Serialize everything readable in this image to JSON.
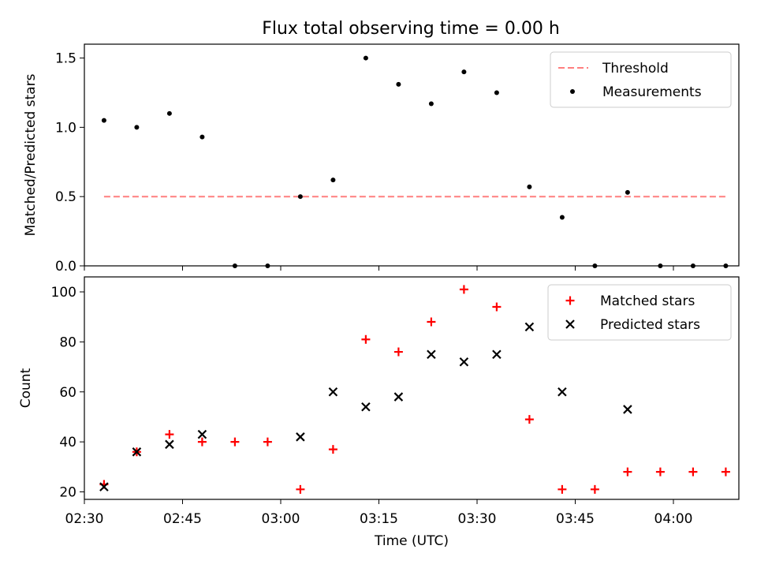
{
  "title": "Flux total observing time = 0.00 h",
  "chart_data": [
    {
      "type": "scatter",
      "title": "Flux total observing time = 0.00 h",
      "xlabel": "",
      "ylabel": "Matched/Predicted stars",
      "xlim": [
        "02:30",
        "04:10"
      ],
      "ylim": [
        0,
        1.6
      ],
      "yticks": [
        0.0,
        0.5,
        1.0,
        1.5
      ],
      "ytick_labels": [
        "0.0",
        "0.5",
        "1.0",
        "1.5"
      ],
      "grid": false,
      "legend_position": "top-right",
      "threshold": {
        "name": "Threshold",
        "value": 0.5,
        "x_start": "02:33",
        "x_end": "04:08",
        "color": "#ff7f7f",
        "style": "dashed"
      },
      "series": [
        {
          "name": "Measurements",
          "marker": "dot",
          "color": "#000000",
          "x": [
            "02:33",
            "02:38",
            "02:43",
            "02:48",
            "02:53",
            "02:58",
            "03:03",
            "03:08",
            "03:13",
            "03:18",
            "03:23",
            "03:28",
            "03:33",
            "03:38",
            "03:43",
            "03:48",
            "03:53",
            "03:58",
            "04:03",
            "04:08"
          ],
          "y": [
            1.05,
            1.0,
            1.1,
            0.93,
            0.0,
            0.0,
            0.5,
            0.62,
            1.5,
            1.31,
            1.17,
            1.4,
            1.25,
            0.57,
            0.35,
            0.0,
            0.53,
            0.0,
            0.0,
            0.0
          ]
        }
      ]
    },
    {
      "type": "scatter",
      "title": "",
      "xlabel": "Time (UTC)",
      "ylabel": "Count",
      "xlim": [
        "02:30",
        "04:10"
      ],
      "xticks": [
        "02:30",
        "02:45",
        "03:00",
        "03:15",
        "03:30",
        "03:45",
        "04:00"
      ],
      "ylim": [
        17,
        106
      ],
      "yticks": [
        20,
        40,
        60,
        80,
        100
      ],
      "ytick_labels": [
        "20",
        "40",
        "60",
        "80",
        "100"
      ],
      "grid": false,
      "legend_position": "top-right",
      "series": [
        {
          "name": "Matched stars",
          "marker": "plus",
          "color": "#ff0000",
          "x": [
            "02:33",
            "02:38",
            "02:43",
            "02:48",
            "02:53",
            "02:58",
            "03:03",
            "03:08",
            "03:13",
            "03:18",
            "03:23",
            "03:28",
            "03:33",
            "03:38",
            "03:43",
            "03:48",
            "03:53",
            "03:58",
            "04:03",
            "04:08"
          ],
          "y": [
            23,
            36,
            43,
            40,
            40,
            40,
            21,
            37,
            81,
            76,
            88,
            101,
            94,
            49,
            21,
            21,
            28,
            28,
            28,
            28
          ]
        },
        {
          "name": "Predicted stars",
          "marker": "x",
          "color": "#000000",
          "x": [
            "02:33",
            "02:38",
            "02:43",
            "02:48",
            "03:03",
            "03:08",
            "03:13",
            "03:18",
            "03:23",
            "03:28",
            "03:33",
            "03:38",
            "03:43",
            "03:53"
          ],
          "y": [
            22,
            36,
            39,
            43,
            42,
            60,
            54,
            58,
            75,
            72,
            75,
            86,
            60,
            53
          ]
        }
      ]
    }
  ]
}
